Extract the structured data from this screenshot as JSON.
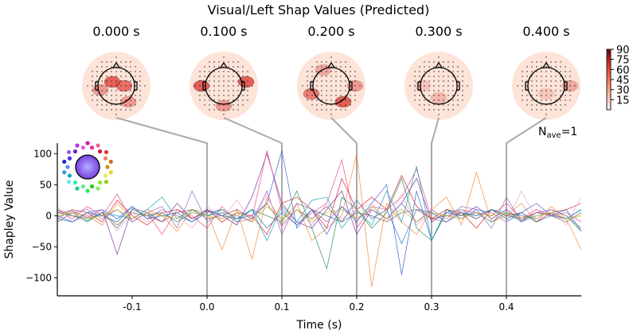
{
  "title": "Visual/Left Shap Values (Predicted)",
  "topomap_titles": [
    "0.000 s",
    "0.100 s",
    "0.200 s",
    "0.300 s",
    "0.400 s"
  ],
  "colorbar": {
    "ticks": [
      "90",
      "75",
      "60",
      "45",
      "30",
      "15"
    ],
    "range": [
      0,
      90
    ],
    "colormap": "Reds"
  },
  "nave_label": "N",
  "nave_sub": "ave",
  "nave_value": "=1",
  "chart_data": {
    "type": "line",
    "xlabel": "Time (s)",
    "ylabel": "Shapley Value",
    "xlim": [
      -0.2,
      0.5
    ],
    "ylim": [
      -129,
      117
    ],
    "xticks": [
      "-0.1",
      "0.0",
      "0.1",
      "0.2",
      "0.3",
      "0.4"
    ],
    "xtick_values": [
      -0.1,
      0.0,
      0.1,
      0.2,
      0.3,
      0.4
    ],
    "yticks": [
      "100",
      "50",
      "0",
      "−50",
      "−100"
    ],
    "ytick_values": [
      100,
      50,
      0,
      -50,
      -100
    ],
    "x_start": -0.2,
    "x_step": 0.02,
    "highlight_times": [
      0.0,
      0.1,
      0.2,
      0.3,
      0.4
    ],
    "series": [
      {
        "color": "#7b2fa0",
        "values": [
          5,
          8,
          -3,
          10,
          -62,
          12,
          5,
          -10,
          20,
          -5,
          8,
          0,
          -15,
          30,
          100,
          20,
          -10,
          -20,
          10,
          40,
          -30,
          10,
          -5,
          20,
          60,
          -10,
          5,
          0,
          15,
          -5,
          10,
          -8,
          5,
          3,
          -5,
          10
        ]
      },
      {
        "color": "#e8488a",
        "values": [
          10,
          -5,
          15,
          0,
          35,
          -10,
          5,
          -30,
          10,
          0,
          -20,
          15,
          -10,
          -5,
          105,
          10,
          -15,
          5,
          20,
          90,
          -20,
          15,
          10,
          30,
          75,
          -5,
          -10,
          10,
          5,
          0,
          20,
          -5,
          10,
          0,
          5,
          -10
        ]
      },
      {
        "color": "#f58a3a",
        "values": [
          -10,
          5,
          0,
          -15,
          20,
          -5,
          10,
          0,
          -25,
          10,
          5,
          -55,
          10,
          -70,
          30,
          -10,
          20,
          -40,
          -20,
          0,
          100,
          -115,
          20,
          -10,
          -30,
          10,
          30,
          -15,
          70,
          -10,
          0,
          20,
          -10,
          15,
          -5,
          -55
        ]
      },
      {
        "color": "#3a5fd9",
        "values": [
          0,
          -10,
          5,
          10,
          -5,
          15,
          -5,
          10,
          0,
          -10,
          5,
          10,
          -5,
          0,
          20,
          105,
          -20,
          10,
          -30,
          15,
          -10,
          20,
          50,
          -95,
          40,
          -40,
          10,
          -5,
          10,
          5,
          -10,
          5,
          20,
          0,
          -5,
          10
        ]
      },
      {
        "color": "#2e8b57",
        "values": [
          5,
          0,
          -8,
          5,
          -20,
          10,
          0,
          5,
          -10,
          5,
          0,
          10,
          -5,
          10,
          0,
          -10,
          40,
          -20,
          -85,
          30,
          10,
          -20,
          5,
          60,
          -20,
          -40,
          10,
          0,
          5,
          -10,
          5,
          0,
          -5,
          10,
          0,
          -25
        ]
      },
      {
        "color": "#d62728",
        "values": [
          -5,
          10,
          5,
          -10,
          25,
          0,
          -15,
          5,
          10,
          -5,
          10,
          -10,
          5,
          0,
          -30,
          20,
          30,
          10,
          -20,
          60,
          10,
          30,
          10,
          65,
          15,
          -5,
          10,
          5,
          -20,
          10,
          0,
          5,
          -10,
          5,
          10,
          20
        ]
      },
      {
        "color": "#17a0b8",
        "values": [
          0,
          5,
          -10,
          5,
          0,
          -5,
          10,
          30,
          -5,
          10,
          0,
          5,
          -10,
          10,
          -40,
          15,
          -10,
          25,
          30,
          -20,
          10,
          -15,
          40,
          -10,
          80,
          -40,
          5,
          10,
          -5,
          10,
          5,
          -10,
          0,
          5,
          -5,
          10
        ]
      },
      {
        "color": "#8c564b",
        "values": [
          10,
          0,
          -5,
          5,
          -15,
          5,
          0,
          -10,
          5,
          10,
          -5,
          0,
          10,
          -5,
          20,
          -15,
          10,
          -5,
          15,
          -10,
          5,
          0,
          -10,
          5,
          10,
          -5,
          0,
          5,
          -5,
          10,
          0,
          -5,
          5,
          0,
          -10,
          5
        ]
      },
      {
        "color": "#9467bd",
        "values": [
          -10,
          5,
          10,
          -5,
          10,
          -10,
          5,
          15,
          -20,
          40,
          -10,
          5,
          0,
          -10,
          40,
          -30,
          20,
          10,
          -10,
          15,
          -5,
          10,
          -5,
          20,
          -10,
          10,
          -5,
          15,
          10,
          -20,
          30,
          -10,
          5,
          10,
          0,
          -20
        ]
      },
      {
        "color": "#f2a0c8",
        "values": [
          15,
          -10,
          0,
          10,
          -25,
          5,
          -10,
          10,
          0,
          -20,
          15,
          -5,
          25,
          -10,
          35,
          -20,
          10,
          -15,
          20,
          -5,
          10,
          20,
          -10,
          35,
          -15,
          5,
          -5,
          10,
          0,
          5,
          -10,
          40,
          -5,
          10,
          -15,
          30
        ]
      },
      {
        "color": "#bcbd22",
        "values": [
          0,
          5,
          -5,
          0,
          10,
          -5,
          5,
          0,
          -5,
          5,
          0,
          -5,
          5,
          -10,
          15,
          -5,
          10,
          -10,
          5,
          10,
          -5,
          15,
          -5,
          10,
          -10,
          5,
          0,
          -5,
          5,
          0,
          5,
          -5,
          0,
          5,
          -5,
          0
        ]
      },
      {
        "color": "#1f77b4",
        "values": [
          -5,
          -10,
          5,
          0,
          -10,
          15,
          -5,
          0,
          5,
          -10,
          10,
          0,
          -5,
          10,
          -20,
          5,
          -15,
          10,
          0,
          -10,
          25,
          -5,
          10,
          -45,
          10,
          5,
          -10,
          5,
          0,
          10,
          -5,
          5,
          -10,
          0,
          10,
          -25
        ]
      }
    ]
  }
}
